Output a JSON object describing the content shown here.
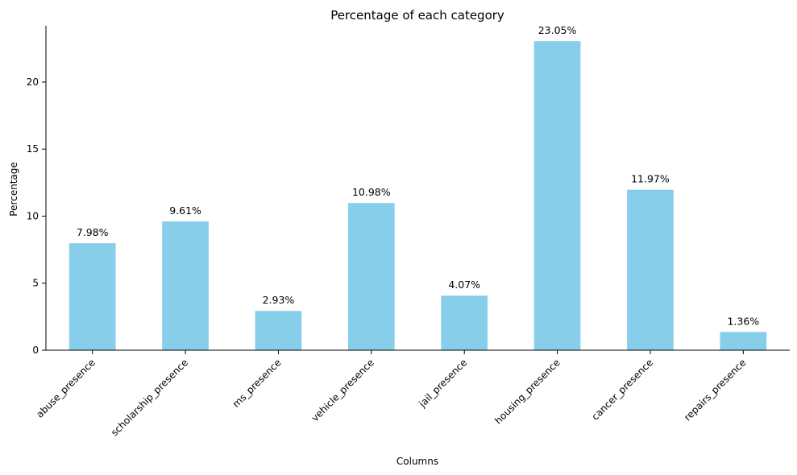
{
  "chart_data": {
    "type": "bar",
    "title": "Percentage of each category",
    "xlabel": "Columns",
    "ylabel": "Percentage",
    "categories": [
      "abuse_presence",
      "scholarship_presence",
      "ms_presence",
      "vehicle_presence",
      "jail_presence",
      "housing_presence",
      "cancer_presence",
      "repairs_presence"
    ],
    "values": [
      7.98,
      9.61,
      2.93,
      10.98,
      4.07,
      23.05,
      11.97,
      1.36
    ],
    "data_labels": [
      "7.98%",
      "9.61%",
      "2.93%",
      "10.98%",
      "4.07%",
      "23.05%",
      "11.97%",
      "1.36%"
    ],
    "yticks": [
      0,
      5,
      10,
      15,
      20
    ],
    "ylim": [
      0,
      24.2
    ],
    "grid": false,
    "bar_color": "#87CEEB"
  }
}
